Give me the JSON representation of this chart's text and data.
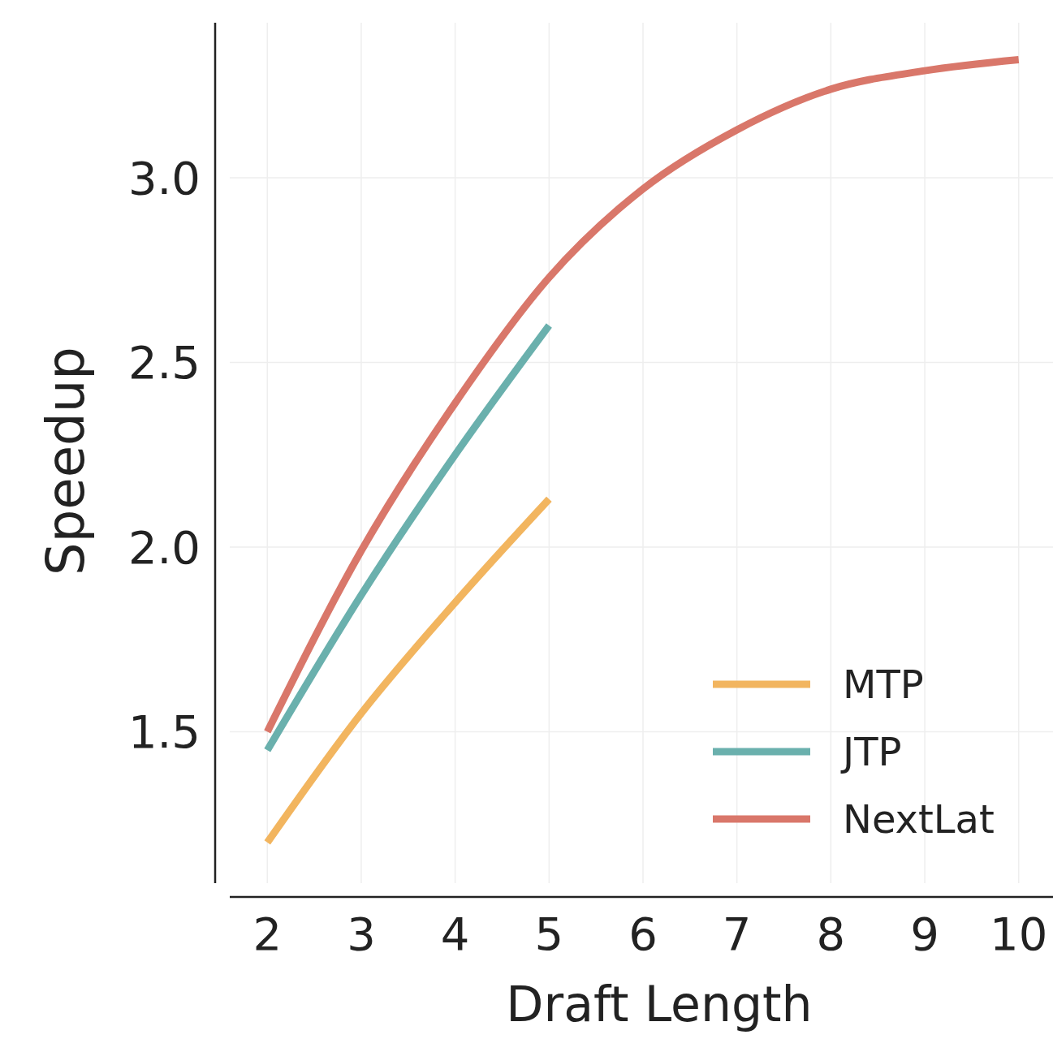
{
  "chart_data": {
    "type": "line",
    "xlabel": "Draft Length",
    "ylabel": "Speedup",
    "x": [
      2,
      3,
      4,
      5,
      6,
      7,
      8,
      9,
      10
    ],
    "series": [
      {
        "name": "MTP",
        "color": "#f2b55f",
        "x": [
          2,
          3,
          4,
          5
        ],
        "values": [
          1.2,
          1.55,
          1.85,
          2.13
        ]
      },
      {
        "name": "JTP",
        "color": "#6ab0ad",
        "x": [
          2,
          3,
          4,
          5
        ],
        "values": [
          1.45,
          1.87,
          2.25,
          2.6
        ]
      },
      {
        "name": "NextLat",
        "color": "#d9776a",
        "values": [
          1.5,
          1.99,
          2.39,
          2.73,
          2.97,
          3.13,
          3.24,
          3.29,
          3.32
        ]
      }
    ],
    "xlim": [
      1.6,
      10.4
    ],
    "ylim": [
      1.09,
      3.42
    ],
    "xticks": [
      2,
      3,
      4,
      5,
      6,
      7,
      8,
      9,
      10
    ],
    "yticks": [
      1.5,
      {
        "value": 2,
        "label": "2.0"
      },
      2.5,
      {
        "value": 3,
        "label": "3.0"
      }
    ],
    "grid": true,
    "legend": "bottom right",
    "marker": "none",
    "line_style": "solid"
  }
}
